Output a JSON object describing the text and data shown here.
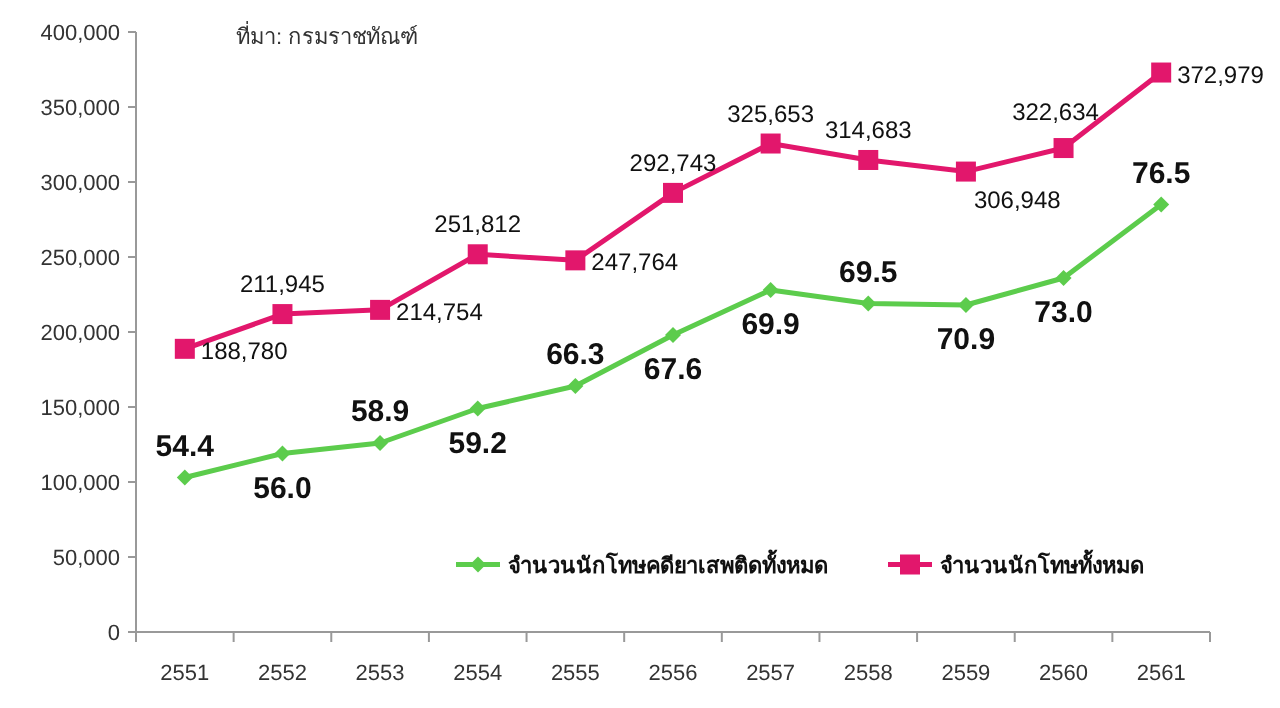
{
  "chart_data": {
    "type": "line",
    "categories": [
      "2551",
      "2552",
      "2553",
      "2554",
      "2555",
      "2556",
      "2557",
      "2558",
      "2559",
      "2560",
      "2561"
    ],
    "series": [
      {
        "name": "จำนวนนักโทษคดียาเสพติดทั้งหมด",
        "color": "#5ccc4c",
        "marker": "diamond",
        "values": [
          103000,
          119000,
          126000,
          149000,
          164000,
          198000,
          228000,
          219000,
          218000,
          236000,
          285000
        ]
      },
      {
        "name": "จำนวนนักโทษทั้งหมด",
        "color": "#e2176c",
        "marker": "square",
        "values": [
          188780,
          211945,
          214754,
          251812,
          247764,
          292743,
          325653,
          314683,
          306948,
          322634,
          372979
        ],
        "value_labels": [
          "188,780",
          "211,945",
          "214,754",
          "251,812",
          "247,764",
          "292,743",
          "325,653",
          "314,683",
          "306,948",
          "322,634",
          "372,979"
        ]
      }
    ],
    "ylim": [
      0,
      400000
    ],
    "yticks": [
      {
        "value": 0,
        "label": "0"
      },
      {
        "value": 50000,
        "label": "50,000"
      },
      {
        "value": 100000,
        "label": "100,000"
      },
      {
        "value": 150000,
        "label": "150,000"
      },
      {
        "value": 200000,
        "label": "200,000"
      },
      {
        "value": 250000,
        "label": "250,000"
      },
      {
        "value": 300000,
        "label": "300,000"
      },
      {
        "value": 350000,
        "label": "350,000"
      },
      {
        "value": 400000,
        "label": "400,000"
      }
    ],
    "annotations": [
      "ที่มา: กรมราชทัณฑ์",
      {
        "text": "54.4",
        "x": "2551",
        "y": 103000
      },
      {
        "text": "56.0",
        "x": "2552",
        "y": 119000
      },
      {
        "text": "58.9",
        "x": "2553",
        "y": 126000
      },
      {
        "text": "59.2",
        "x": "2554",
        "y": 149000
      },
      {
        "text": "66.3",
        "x": "2555",
        "y": 164000
      },
      {
        "text": "67.6",
        "x": "2556",
        "y": 198000
      },
      {
        "text": "69.9",
        "x": "2557",
        "y": 228000
      },
      {
        "text": "69.5",
        "x": "2558",
        "y": 219000
      },
      {
        "text": "70.9",
        "x": "2559",
        "y": 218000
      },
      {
        "text": "73.0",
        "x": "2560",
        "y": 236000
      },
      {
        "text": "76.5",
        "x": "2561",
        "y": 285000
      }
    ],
    "legend": "bottom",
    "grid": false
  }
}
